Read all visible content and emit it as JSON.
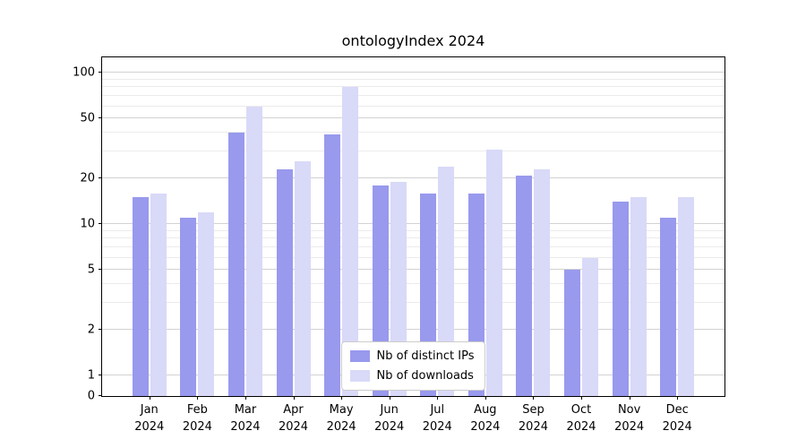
{
  "title": "ontologyIndex 2024",
  "chart_data": {
    "type": "bar",
    "title": "ontologyIndex 2024",
    "categories": [
      "Jan",
      "Feb",
      "Mar",
      "Apr",
      "May",
      "Jun",
      "Jul",
      "Aug",
      "Sep",
      "Oct",
      "Nov",
      "Dec"
    ],
    "category_year": "2024",
    "series": [
      {
        "name": "Nb of distinct IPs",
        "color": "#9999ee",
        "values": [
          15,
          11,
          40,
          23,
          39,
          18,
          16,
          16,
          21,
          5,
          14,
          11
        ]
      },
      {
        "name": "Nb of downloads",
        "color": "#d9d9f8",
        "values": [
          16,
          12,
          60,
          26,
          80,
          19,
          24,
          31,
          23,
          6,
          15,
          15
        ]
      }
    ],
    "yscale": "symlog",
    "ylim": [
      0,
      100
    ],
    "yticks": [
      0,
      1,
      2,
      5,
      10,
      20,
      50,
      100
    ],
    "yticks_minor": [
      3,
      4,
      6,
      7,
      8,
      9,
      30,
      40,
      60,
      70,
      80,
      90
    ],
    "grid": true,
    "legend_position": "lower center"
  }
}
